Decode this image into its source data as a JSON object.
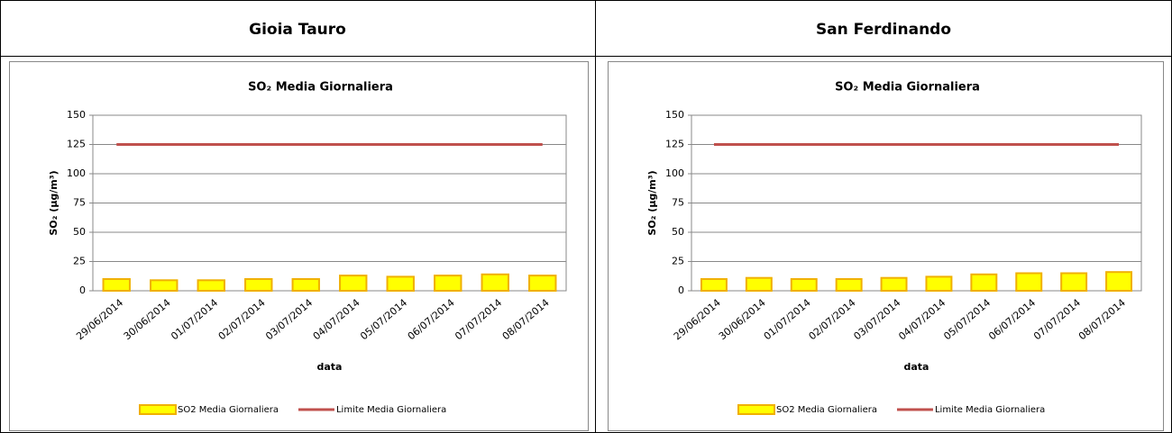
{
  "table": {
    "headers": [
      "Gioia Tauro",
      "San Ferdinando"
    ]
  },
  "chart_data": [
    {
      "type": "bar",
      "title": "SO₂ Media Giornaliera",
      "x_label": "data",
      "y_label": "SO₂ (µg/m³)",
      "categories": [
        "29/06/2014",
        "30/06/2014",
        "01/07/2014",
        "02/07/2014",
        "03/07/2014",
        "04/07/2014",
        "05/07/2014",
        "06/07/2014",
        "07/07/2014",
        "08/07/2014"
      ],
      "series": [
        {
          "name": "SO2 Media Giornaliera",
          "type": "bar",
          "color": "#ffff00",
          "edge_color": "#f0b000",
          "values": [
            10,
            9,
            9,
            10,
            10,
            13,
            12,
            13,
            14,
            13
          ]
        },
        {
          "name": "Limite Media Giornaliera",
          "type": "line",
          "color": "#c0504d",
          "values": [
            125,
            125,
            125,
            125,
            125,
            125,
            125,
            125,
            125,
            125
          ]
        }
      ],
      "ylim": [
        0,
        150
      ],
      "yticks": [
        0,
        25,
        50,
        75,
        100,
        125,
        150
      ],
      "grid": true,
      "legend": "bottom"
    },
    {
      "type": "bar",
      "title": "SO₂ Media Giornaliera",
      "x_label": "data",
      "y_label": "SO₂ (µg/m³)",
      "categories": [
        "29/06/2014",
        "30/06/2014",
        "01/07/2014",
        "02/07/2014",
        "03/07/2014",
        "04/07/2014",
        "05/07/2014",
        "06/07/2014",
        "07/07/2014",
        "08/07/2014"
      ],
      "series": [
        {
          "name": "SO2 Media Giornaliera",
          "type": "bar",
          "color": "#ffff00",
          "edge_color": "#f0b000",
          "values": [
            10,
            11,
            10,
            10,
            11,
            12,
            14,
            15,
            15,
            16
          ]
        },
        {
          "name": "Limite Media Giornaliera",
          "type": "line",
          "color": "#c0504d",
          "values": [
            125,
            125,
            125,
            125,
            125,
            125,
            125,
            125,
            125,
            125
          ]
        }
      ],
      "ylim": [
        0,
        150
      ],
      "yticks": [
        0,
        25,
        50,
        75,
        100,
        125,
        150
      ],
      "grid": true,
      "legend": "bottom"
    }
  ]
}
